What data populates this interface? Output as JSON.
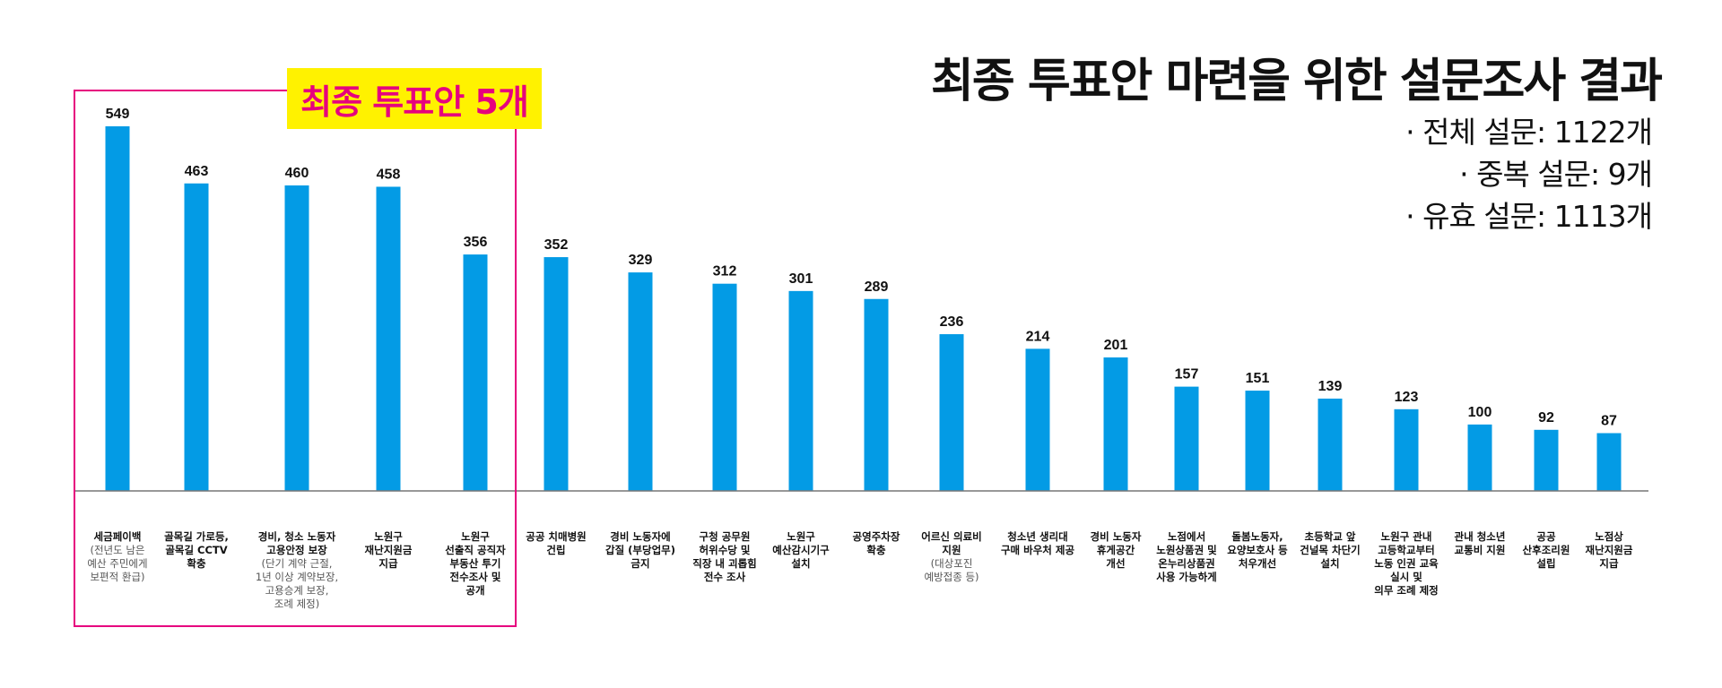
{
  "header": {
    "title": "최종 투표안 마련을 위한 설문조사 결과",
    "stats": [
      "· 전체 설문: 1122개",
      "· 중복 설문: 9개",
      "· 유효 설문: 1113개"
    ]
  },
  "highlight": {
    "label": "최종 투표안 5개"
  },
  "colors": {
    "bar": "#039be5",
    "highlight_border": "#e6007e",
    "badge_bg": "#fff200",
    "badge_text": "#e6007e"
  },
  "chart_data": {
    "type": "bar",
    "title": "최종 투표안 마련을 위한 설문조사 결과",
    "ylim": [
      0,
      549
    ],
    "categories": [
      {
        "label": "세금페이백",
        "sub": "(전년도 남은\n예산 주민에게\n보편적 환급)"
      },
      {
        "label": "골목길 가로등,\n골목길 CCTV\n확충",
        "sub": ""
      },
      {
        "label": "경비, 청소 노동자\n고용안정 보장",
        "sub": "(단기 계약 근절,\n1년 이상 계약보장,\n고용승계 보장,\n조례 제정)"
      },
      {
        "label": "노원구\n재난지원금\n지급",
        "sub": ""
      },
      {
        "label": "노원구\n선출직 공직자\n부동산 투기\n전수조사 및\n공개",
        "sub": ""
      },
      {
        "label": "공공 치매병원\n건립",
        "sub": ""
      },
      {
        "label": "경비 노동자에\n갑질 (부당업무)\n금지",
        "sub": ""
      },
      {
        "label": "구청 공무원\n허위수당 및\n직장 내 괴롭힘\n전수 조사",
        "sub": ""
      },
      {
        "label": "노원구\n예산감시기구\n설치",
        "sub": ""
      },
      {
        "label": "공영주차장\n확충",
        "sub": ""
      },
      {
        "label": "어르신 의료비\n지원",
        "sub": "(대상포진\n예방접종 등)"
      },
      {
        "label": "청소년 생리대\n구매 바우처 제공",
        "sub": ""
      },
      {
        "label": "경비 노동자\n휴게공간\n개선",
        "sub": ""
      },
      {
        "label": "노점에서\n노원상품권 및\n온누리상품권\n사용 가능하게",
        "sub": ""
      },
      {
        "label": "돌봄노동자,\n요양보호사 등\n처우개선",
        "sub": ""
      },
      {
        "label": "초등학교 앞\n건널목 차단기\n설치",
        "sub": ""
      },
      {
        "label": "노원구 관내\n고등학교부터\n노동 인권 교육\n실시 및\n의무 조례 제정",
        "sub": ""
      },
      {
        "label": "관내 청소년\n교통비 지원",
        "sub": ""
      },
      {
        "label": "공공\n산후조리원\n설립",
        "sub": ""
      },
      {
        "label": "노점상\n재난지원금\n지급",
        "sub": ""
      }
    ],
    "values": [
      549,
      463,
      460,
      458,
      356,
      352,
      329,
      312,
      301,
      289,
      236,
      214,
      201,
      157,
      151,
      139,
      123,
      100,
      92,
      87
    ]
  }
}
